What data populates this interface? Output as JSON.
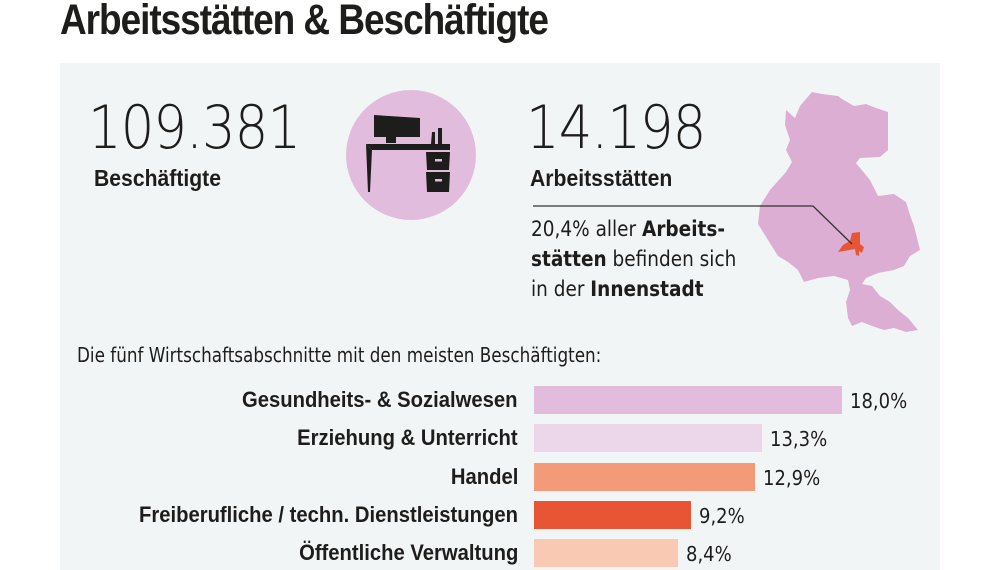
{
  "title": "Arbeitsstätten & Beschäftigte",
  "stats": {
    "employees": {
      "value": "109.381",
      "label": "Beschäftigte"
    },
    "workplaces": {
      "value": "14.198",
      "label": "Arbeitsstätten"
    }
  },
  "icon": {
    "name": "office-desk-icon",
    "circle_color": "#e2bcdc"
  },
  "note": {
    "line1_regular": "20,4% aller ",
    "line1_bold": "Arbeits-",
    "line2_bold": "stätten",
    "line2_regular": " befinden sich",
    "line3_regular": "in der ",
    "line3_bold": "Innenstadt",
    "share_percent": 20.4,
    "highlighted_district": "Innenstadt"
  },
  "map": {
    "city_color": "#dcaed3",
    "highlight_color": "#e85535",
    "leader_line_color": "#333333"
  },
  "colors": {
    "panel_background": "#f2f5f6",
    "text": "#1d1d1b"
  },
  "chart_data": {
    "type": "bar",
    "orientation": "horizontal",
    "title": "Die fünf Wirtschaftsabschnitte mit den meisten Beschäftigten:",
    "categories": [
      "Gesundheits- & Sozialwesen",
      "Erziehung & Unterricht",
      "Handel",
      "Freiberufliche / techn. Dienstleistungen",
      "Öffentliche Verwaltung"
    ],
    "values": [
      18.0,
      13.3,
      12.9,
      9.2,
      8.4
    ],
    "value_labels": [
      "18,0%",
      "13,3%",
      "12,9%",
      "9,2%",
      "8,4%"
    ],
    "colors": [
      "#e2bcdc",
      "#ecd6e9",
      "#f39b79",
      "#e85535",
      "#f9c9b3"
    ],
    "unit": "%",
    "xlabel": "",
    "ylabel": "",
    "xlim": [
      0,
      18.0
    ],
    "grid": false,
    "legend": "none"
  }
}
